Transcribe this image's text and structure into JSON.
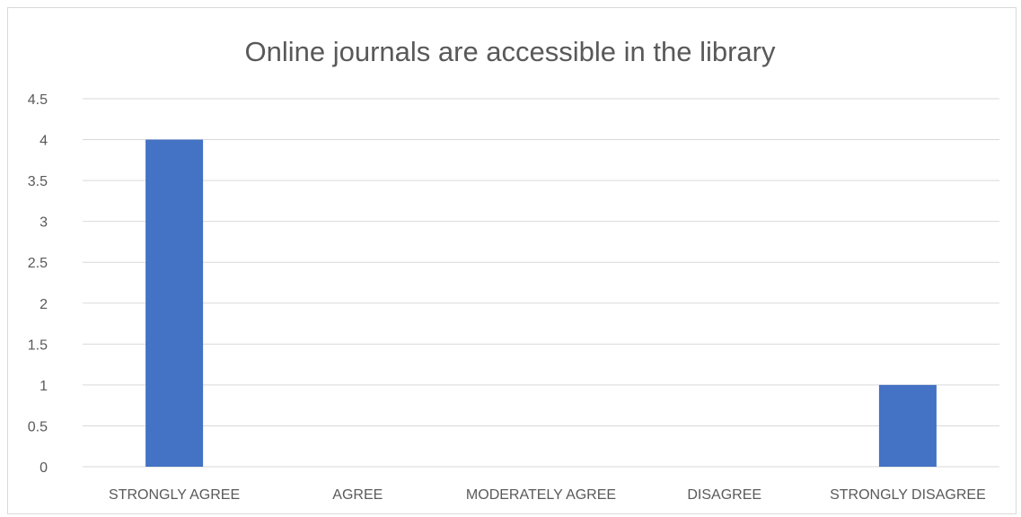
{
  "chart_data": {
    "type": "bar",
    "title": "Online journals are accessible in the library",
    "xlabel": "",
    "ylabel": "",
    "categories": [
      "STRONGLY AGREE",
      "AGREE",
      "MODERATELY AGREE",
      "DISAGREE",
      "STRONGLY DISAGREE"
    ],
    "values": [
      4,
      0,
      0,
      0,
      1
    ],
    "ylim": [
      0,
      4.5
    ],
    "yticks": [
      "0",
      "0.5",
      "1",
      "1.5",
      "2",
      "2.5",
      "3",
      "3.5",
      "4",
      "4.5"
    ],
    "grid": true,
    "legend": "none",
    "bar_color": "#4472C4",
    "grid_color": "#d9d9d9",
    "text_color": "#595959"
  }
}
